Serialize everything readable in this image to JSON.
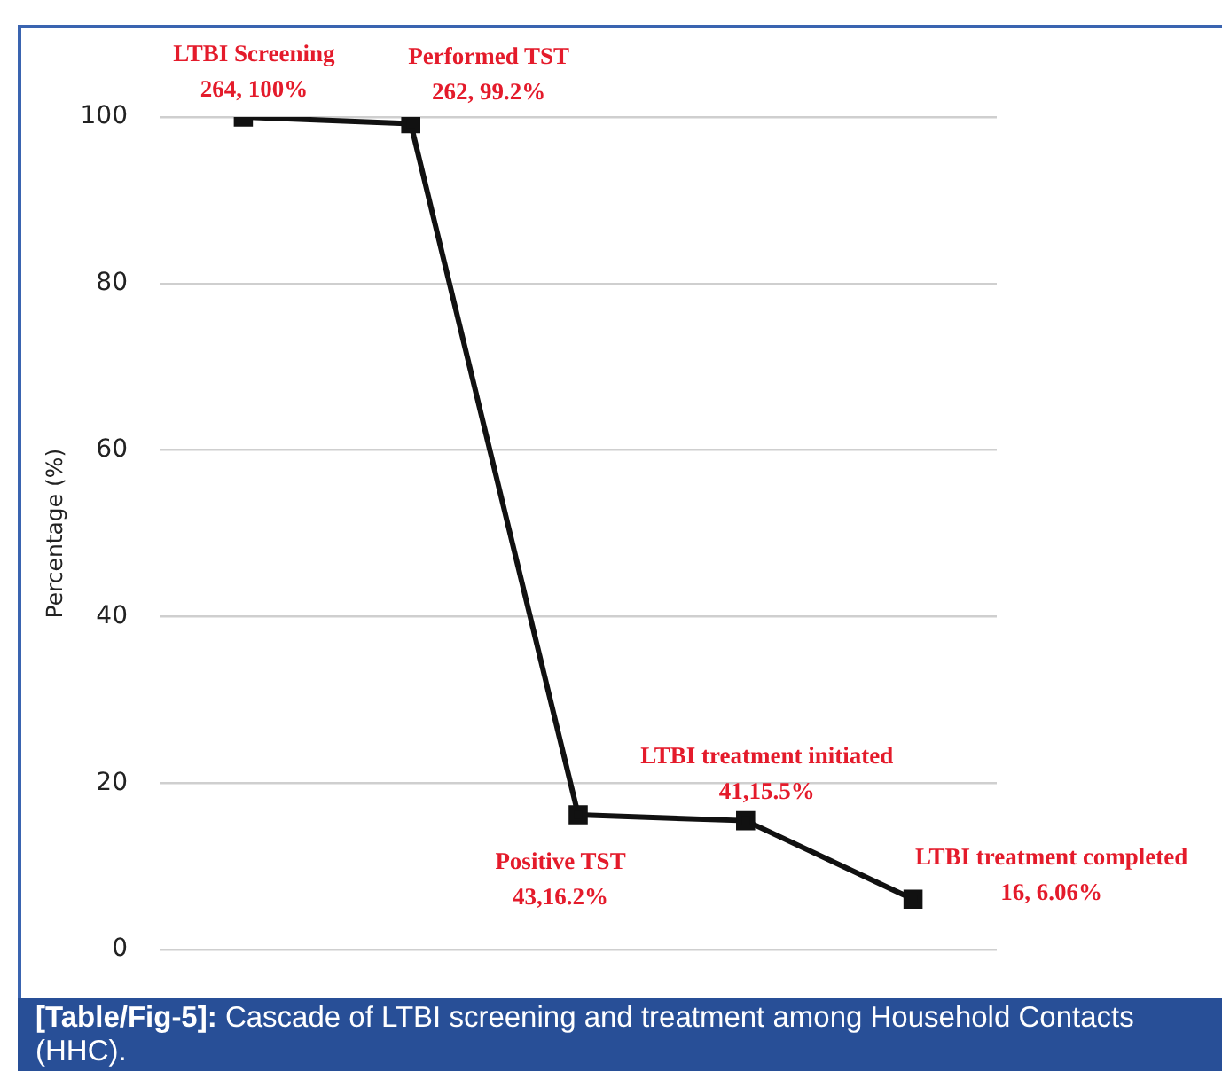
{
  "chart_data": {
    "type": "line",
    "ylabel": "Percentage (%)",
    "categories": [
      null,
      null,
      null,
      null,
      null
    ],
    "series": [
      {
        "color": "#111111",
        "values": [
          100,
          99.2,
          16.2,
          15.5,
          6.06
        ]
      }
    ],
    "ylim": [
      0,
      100
    ],
    "yticks": [
      0,
      20,
      40,
      60,
      80,
      100
    ],
    "grid": "y",
    "legend": false,
    "marker": "square",
    "line_style": "solid",
    "annotations": [
      "LTBI Screening\n264, 100%",
      "Performed TST\n262, 99.2%",
      "Positive TST\n43,16.2%",
      "LTBI treatment initiated\n41,15.5%",
      "LTBI treatment completed\n16, 6.06%",
      "[Table/Fig-5]: Cascade of LTBI screening and treatment among Household Contacts (HHC)."
    ]
  }
}
